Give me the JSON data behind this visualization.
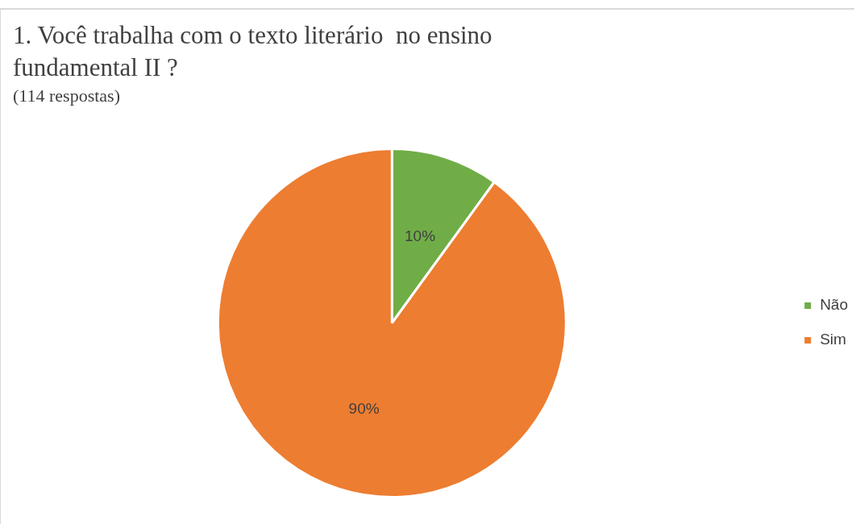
{
  "chart_data": {
    "type": "pie",
    "title": "1. Você trabalha com o texto literário  no ensino fundamental II ?",
    "subtitle": "(114 respostas)",
    "categories": [
      "Não",
      "Sim"
    ],
    "values": [
      10,
      90
    ],
    "colors": [
      "#70ad47",
      "#ed7d31"
    ],
    "value_labels": [
      "10%",
      "90%"
    ],
    "legend": "right"
  }
}
